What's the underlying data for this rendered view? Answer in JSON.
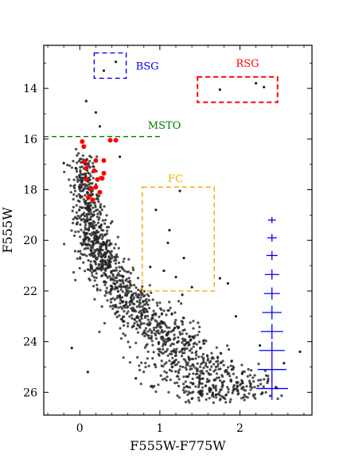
{
  "chart_data": {
    "type": "scatter",
    "title": "",
    "xlabel": "F555W-F775W",
    "ylabel": "F555W",
    "xlim": [
      -0.45,
      2.9
    ],
    "ylim": [
      26.9,
      12.3
    ],
    "y_inverted": true,
    "xticks": [
      "0",
      "1",
      "2"
    ],
    "xtick_values": [
      0,
      1,
      2
    ],
    "yticks": [
      "14",
      "16",
      "18",
      "20",
      "22",
      "24",
      "26"
    ],
    "ytick_values": [
      14,
      16,
      18,
      20,
      22,
      24,
      26
    ],
    "grid": false,
    "colors": {
      "stars": "#222222",
      "highlight": "#ff0000",
      "bsg": "#0000ff",
      "rsg": "#ff0000",
      "msto": "#008000",
      "fc": "#ffa500",
      "errors": "#0000ff"
    },
    "boxes": [
      {
        "id": "bsg",
        "label": "BSG",
        "x0": 0.18,
        "x1": 0.58,
        "y0": 12.6,
        "y1": 13.6,
        "color": "#0000ff",
        "label_x": 0.7,
        "label_y": 13.25
      },
      {
        "id": "rsg",
        "label": "RSG",
        "x0": 1.47,
        "x1": 2.47,
        "y0": 13.55,
        "y1": 14.55,
        "color": "#ff0000",
        "label_x": 1.95,
        "label_y": 13.15
      },
      {
        "id": "fc",
        "label": "FC",
        "x0": 0.78,
        "x1": 1.68,
        "y0": 17.9,
        "y1": 22.0,
        "color": "#ffa500",
        "label_x": 1.1,
        "label_y": 17.7
      }
    ],
    "msto": {
      "label": "MSTO",
      "y": 15.9,
      "x0": -0.45,
      "x1": 1.0,
      "color": "#008000",
      "label_x": 0.85,
      "label_y": 15.6
    },
    "highlight_points": [
      {
        "x": 0.03,
        "y": 16.1
      },
      {
        "x": 0.05,
        "y": 16.3
      },
      {
        "x": 0.38,
        "y": 16.05
      },
      {
        "x": 0.45,
        "y": 16.05
      },
      {
        "x": 0.06,
        "y": 16.9
      },
      {
        "x": 0.2,
        "y": 16.85
      },
      {
        "x": 0.3,
        "y": 16.85
      },
      {
        "x": 0.08,
        "y": 17.15
      },
      {
        "x": 0.18,
        "y": 17.25
      },
      {
        "x": 0.3,
        "y": 17.35
      },
      {
        "x": 0.08,
        "y": 17.6
      },
      {
        "x": 0.22,
        "y": 17.6
      },
      {
        "x": 0.28,
        "y": 17.55
      },
      {
        "x": 0.14,
        "y": 17.95
      },
      {
        "x": 0.2,
        "y": 17.9
      },
      {
        "x": 0.25,
        "y": 18.1
      },
      {
        "x": 0.11,
        "y": 18.3
      },
      {
        "x": 0.16,
        "y": 18.4
      }
    ],
    "sparse_points": [
      {
        "x": 0.45,
        "y": 12.95
      },
      {
        "x": 0.3,
        "y": 13.3
      },
      {
        "x": 1.75,
        "y": 14.05
      },
      {
        "x": 2.2,
        "y": 13.8
      },
      {
        "x": 2.3,
        "y": 13.95
      },
      {
        "x": 0.08,
        "y": 14.5
      },
      {
        "x": 0.2,
        "y": 14.95
      },
      {
        "x": 0.25,
        "y": 15.5
      },
      {
        "x": -0.2,
        "y": 16.95
      },
      {
        "x": -0.05,
        "y": 17.15
      },
      {
        "x": 0.5,
        "y": 16.7
      },
      {
        "x": 1.25,
        "y": 18.05
      },
      {
        "x": 0.95,
        "y": 18.8
      },
      {
        "x": 1.12,
        "y": 19.6
      },
      {
        "x": 1.1,
        "y": 20.1
      },
      {
        "x": 1.3,
        "y": 20.7
      },
      {
        "x": 0.88,
        "y": 21.05
      },
      {
        "x": 1.05,
        "y": 21.2
      },
      {
        "x": 1.2,
        "y": 21.45
      },
      {
        "x": 1.4,
        "y": 21.85
      },
      {
        "x": 1.28,
        "y": 22.15
      },
      {
        "x": 1.75,
        "y": 21.5
      },
      {
        "x": 1.85,
        "y": 21.7
      },
      {
        "x": 2.25,
        "y": 24.15
      },
      {
        "x": 2.75,
        "y": 24.4
      },
      {
        "x": 2.55,
        "y": 24.85
      },
      {
        "x": 2.35,
        "y": 25.55
      },
      {
        "x": 2.45,
        "y": 25.8
      },
      {
        "x": -0.1,
        "y": 24.25
      },
      {
        "x": 0.1,
        "y": 25.2
      },
      {
        "x": 1.95,
        "y": 23.0
      },
      {
        "x": 1.7,
        "y": 26.1
      },
      {
        "x": 0.7,
        "y": 25.45
      },
      {
        "x": 1.15,
        "y": 22.9
      },
      {
        "x": 1.9,
        "y": 25.1
      }
    ],
    "ms_ridge": [
      {
        "y": 16.3,
        "x": 0.04,
        "spread": 0.07
      },
      {
        "y": 17.5,
        "x": 0.06,
        "spread": 0.09
      },
      {
        "y": 18.8,
        "x": 0.1,
        "spread": 0.1
      },
      {
        "y": 20.0,
        "x": 0.18,
        "spread": 0.11
      },
      {
        "y": 21.0,
        "x": 0.3,
        "spread": 0.13
      },
      {
        "y": 22.0,
        "x": 0.55,
        "spread": 0.17
      },
      {
        "y": 23.0,
        "x": 0.85,
        "spread": 0.2
      },
      {
        "y": 24.0,
        "x": 1.15,
        "spread": 0.25
      },
      {
        "y": 25.0,
        "x": 1.45,
        "spread": 0.32
      },
      {
        "y": 26.0,
        "x": 1.75,
        "spread": 0.38
      }
    ],
    "error_bars": [
      {
        "x": 2.4,
        "y": 19.2,
        "xerr": 0.05,
        "yerr": 0.12
      },
      {
        "x": 2.4,
        "y": 19.9,
        "xerr": 0.06,
        "yerr": 0.15
      },
      {
        "x": 2.4,
        "y": 20.6,
        "xerr": 0.07,
        "yerr": 0.18
      },
      {
        "x": 2.4,
        "y": 21.35,
        "xerr": 0.09,
        "yerr": 0.2
      },
      {
        "x": 2.4,
        "y": 22.1,
        "xerr": 0.1,
        "yerr": 0.24
      },
      {
        "x": 2.4,
        "y": 22.85,
        "xerr": 0.12,
        "yerr": 0.27
      },
      {
        "x": 2.4,
        "y": 23.6,
        "xerr": 0.14,
        "yerr": 0.3
      },
      {
        "x": 2.4,
        "y": 24.35,
        "xerr": 0.16,
        "yerr": 0.35
      },
      {
        "x": 2.4,
        "y": 25.1,
        "xerr": 0.18,
        "yerr": 0.4
      },
      {
        "x": 2.4,
        "y": 25.85,
        "xerr": 0.2,
        "yerr": 0.45
      }
    ]
  }
}
